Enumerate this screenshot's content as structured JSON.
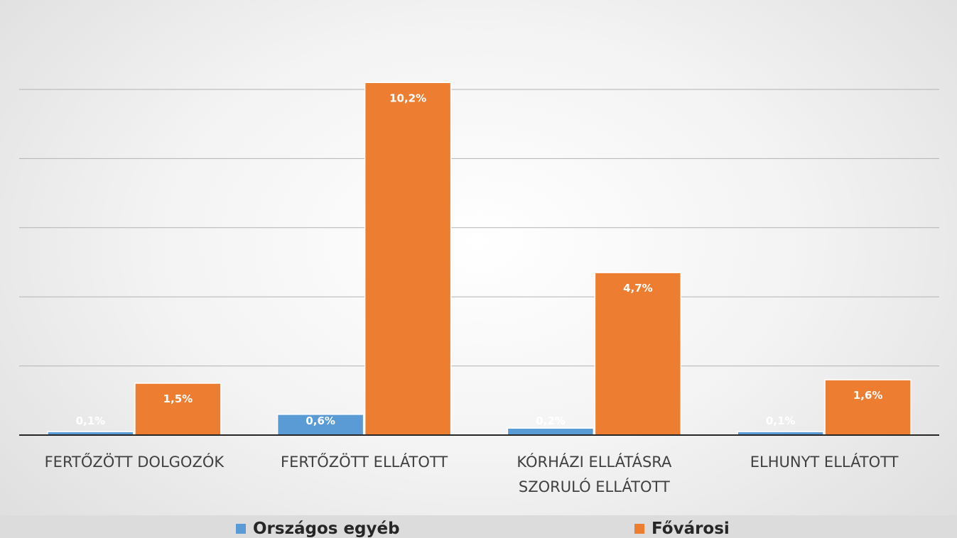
{
  "chart_data": {
    "type": "bar",
    "categories": [
      [
        "FERTŐZÖTT DOLGOZÓK"
      ],
      [
        "FERTŐZÖTT ELLÁTOTT"
      ],
      [
        "KÓRHÁZI ELLÁTÁSRA",
        "SZORULÓ ELLÁTOTT"
      ],
      [
        "ELHUNYT ELLÁTOTT"
      ]
    ],
    "series": [
      {
        "name": "Országos egyéb",
        "color": "#5b9bd5",
        "values": [
          0.1,
          0.6,
          0.2,
          0.1
        ],
        "labels": [
          "0,1%",
          "0,6%",
          "0,2%",
          "0,1%"
        ]
      },
      {
        "name": "Fővárosi",
        "color": "#ed7d31",
        "values": [
          1.5,
          10.2,
          4.7,
          1.6
        ],
        "labels": [
          "1,5%",
          "10,2%",
          "4,7%",
          "1,6%"
        ]
      }
    ],
    "ylim": [
      0,
      10.5
    ],
    "grid": true,
    "legend_position": "bottom"
  }
}
